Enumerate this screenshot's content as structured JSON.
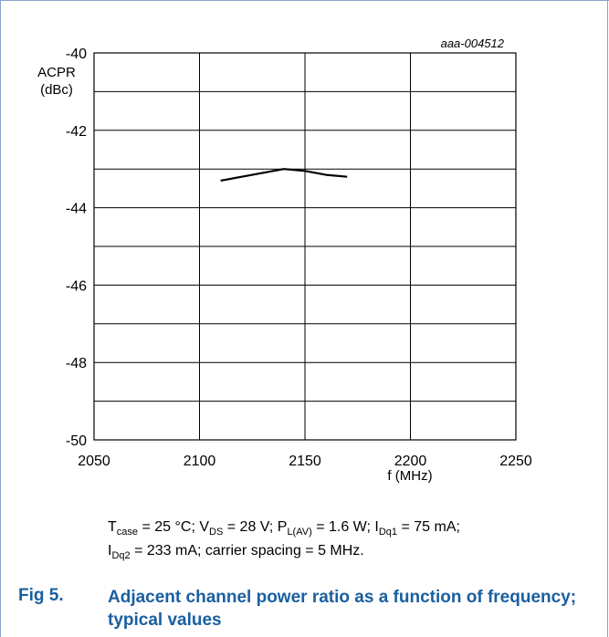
{
  "figure": {
    "label": "Fig 5.",
    "title": "Adjacent channel power ratio as a function of frequency; typical values",
    "code": "aaa-004512"
  },
  "chart_data": {
    "type": "line",
    "ylabel_line1": "ACPR",
    "ylabel_line2": "(dBc)",
    "xlabel": "f (MHz)",
    "xlim": [
      2050,
      2250
    ],
    "ylim": [
      -50,
      -40
    ],
    "x_ticks": [
      "2050",
      "2100",
      "2150",
      "2200",
      "2250"
    ],
    "y_ticks": [
      "-40",
      "-42",
      "-44",
      "-46",
      "-48",
      "-50"
    ],
    "grid": true,
    "series": [
      {
        "x": [
          2110,
          2120,
          2130,
          2140,
          2150,
          2160,
          2170
        ],
        "y": [
          -43.3,
          -43.2,
          -43.1,
          -43.0,
          -43.05,
          -43.15,
          -43.2
        ]
      }
    ]
  },
  "caption": {
    "line1": [
      {
        "t": "T"
      },
      {
        "sub": "case"
      },
      {
        "t": " = 25 °C; V"
      },
      {
        "sub": "DS"
      },
      {
        "t": " = 28 V; P"
      },
      {
        "sub": "L(AV)"
      },
      {
        "t": " = 1.6 W; I"
      },
      {
        "sub": "Dq1"
      },
      {
        "t": " = 75 mA;"
      }
    ],
    "line2": [
      {
        "t": "I"
      },
      {
        "sub": "Dq2"
      },
      {
        "t": " = 233 mA; carrier spacing = 5 MHz."
      }
    ]
  },
  "colors": {
    "title": "#1a5fa0",
    "frame": "#8aa4c8",
    "grid": "#000000",
    "line": "#000000"
  }
}
